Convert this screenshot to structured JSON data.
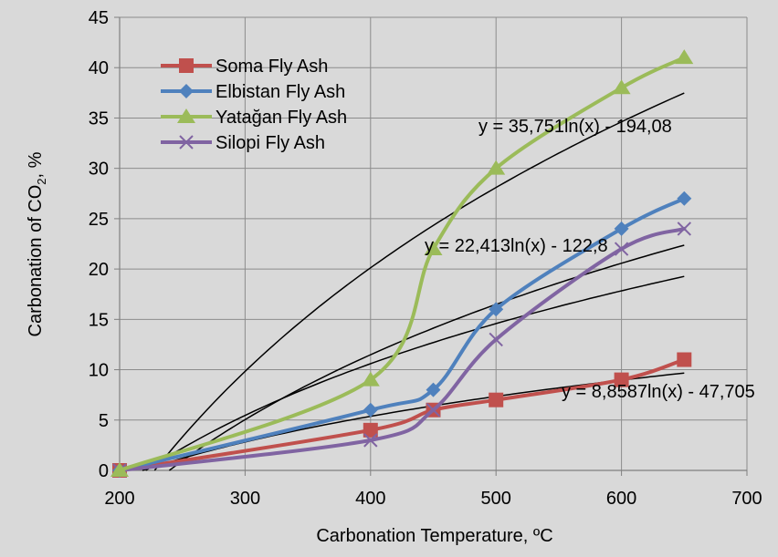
{
  "chart_data": {
    "type": "line",
    "title": "",
    "xlabel": "Carbonation Temperature, ",
    "xlabel_unit": "ºC",
    "ylabel": "Carbonation of CO",
    "ylabel_sub": "2",
    "ylabel_tail": ", %",
    "xlim": [
      200,
      700
    ],
    "ylim": [
      0,
      45
    ],
    "x_ticks": [
      "200",
      "300",
      "400",
      "500",
      "600",
      "700"
    ],
    "y_ticks": [
      "0",
      "5",
      "10",
      "15",
      "20",
      "25",
      "30",
      "35",
      "40",
      "45"
    ],
    "grid": true,
    "legend_position": "top-left",
    "series": [
      {
        "name": "Soma Fly Ash",
        "color": "#c0504d",
        "marker": "square",
        "x": [
          200,
          400,
          450,
          500,
          600,
          650
        ],
        "values": [
          0,
          4,
          6,
          7,
          9,
          11
        ]
      },
      {
        "name": "Elbistan Fly Ash",
        "color": "#4f81bd",
        "marker": "diamond",
        "x": [
          200,
          400,
          450,
          500,
          600,
          650
        ],
        "values": [
          0,
          6,
          8,
          16,
          24,
          27
        ]
      },
      {
        "name": "Yatağan Fly Ash",
        "color": "#9bbb59",
        "marker": "triangle",
        "x": [
          200,
          400,
          450,
          500,
          600,
          650
        ],
        "values": [
          0,
          9,
          22,
          30,
          38,
          41
        ]
      },
      {
        "name": "Silopi Fly Ash",
        "color": "#8064a2",
        "marker": "x",
        "x": [
          200,
          400,
          450,
          500,
          600,
          650
        ],
        "values": [
          0,
          3,
          6,
          13,
          22,
          24
        ]
      }
    ],
    "trendlines": [
      {
        "a": 35.751,
        "b": -194.08,
        "label": "y = 35,751ln(x) - 194,08",
        "color": "#000000"
      },
      {
        "a": 22.413,
        "b": -122.8,
        "label": "y = 22,413ln(x) - 122,8",
        "color": "#000000"
      },
      {
        "a": 17.85,
        "b": -96.35,
        "label": "",
        "color": "#000000"
      },
      {
        "a": 8.8587,
        "b": -47.705,
        "label": "y = 8,8587ln(x) - 47,705",
        "color": "#000000"
      }
    ]
  }
}
